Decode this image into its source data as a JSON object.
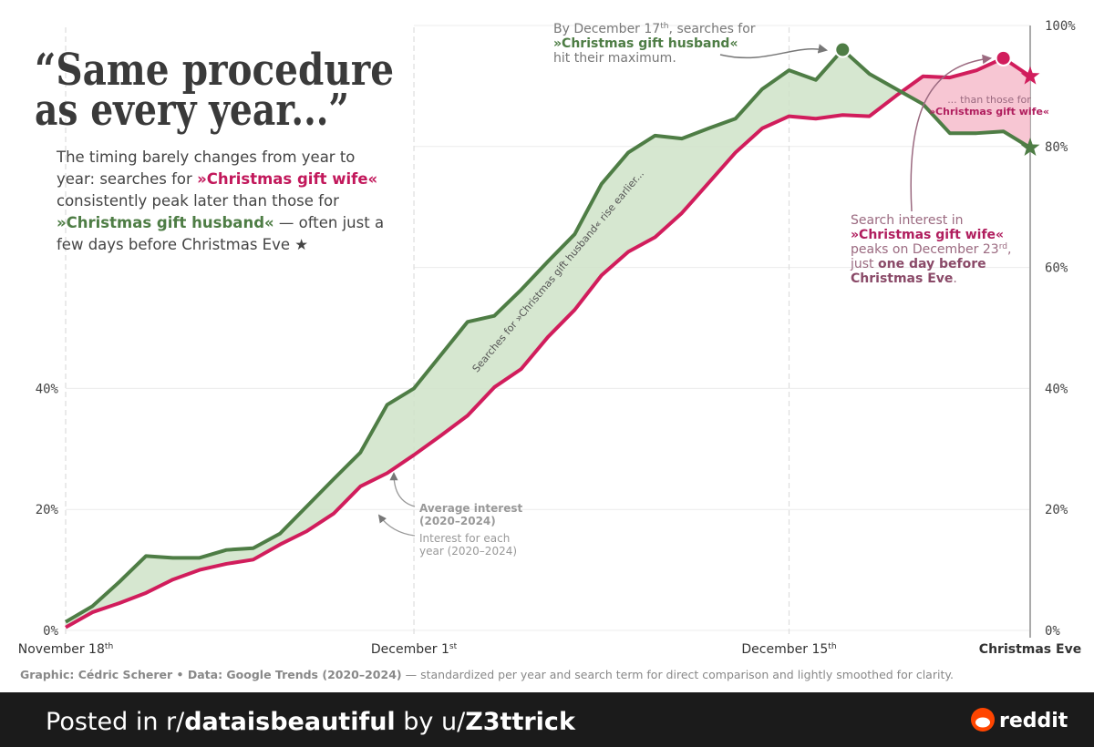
{
  "chart_data": {
    "type": "line",
    "title": [
      "“Same procedure",
      "as every year...”"
    ],
    "description": [
      [
        {
          "text": "The timing barely changes from year to"
        }
      ],
      [
        {
          "text": "year: searches for "
        },
        {
          "text": "»Christmas gift wife«",
          "bold": true,
          "color": "#c2185b"
        }
      ],
      [
        {
          "text": "consistently peak later than those for"
        }
      ],
      [
        {
          "text": "»Christmas gift husband«",
          "bold": true,
          "color": "#4e7d45"
        },
        {
          "text": " — often just a"
        }
      ],
      [
        {
          "text": "few days before Christmas Eve ★"
        }
      ]
    ],
    "x": [
      0,
      1,
      2,
      3,
      4,
      5,
      6,
      7,
      8,
      9,
      10,
      11,
      12,
      13,
      14,
      15,
      16,
      17,
      18,
      19,
      20,
      21,
      22,
      23,
      24,
      25,
      26,
      27,
      28,
      29,
      30,
      31,
      32,
      33,
      34,
      35,
      36
    ],
    "xlim": [
      0,
      36
    ],
    "xticks": [
      {
        "value": 0,
        "label": "November 18",
        "sup": "th"
      },
      {
        "value": 13,
        "label": "December 1",
        "sup": "st"
      },
      {
        "value": 27,
        "label": "December 15",
        "sup": "th"
      },
      {
        "value": 36,
        "label": "Christmas Eve",
        "bold": true
      }
    ],
    "ylim": [
      0,
      100
    ],
    "yticks": [
      {
        "value": 0,
        "label": "0%"
      },
      {
        "value": 20,
        "label": "20%"
      },
      {
        "value": 40,
        "label": "40%"
      },
      {
        "value": 60,
        "label": "60%"
      },
      {
        "value": 80,
        "label": "80%"
      },
      {
        "value": 100,
        "label": "100%"
      }
    ],
    "yticks_left": [
      {
        "value": 0,
        "label": "0%"
      },
      {
        "value": 20,
        "label": "20%"
      },
      {
        "value": 40,
        "label": "40%"
      }
    ],
    "grid": true,
    "series": [
      {
        "name": "»Christmas gift husband«",
        "color": "#4e7d45",
        "fill": "#cfe3c8",
        "values": [
          1.4,
          4,
          8,
          12.3,
          12,
          12,
          13.3,
          13.6,
          16,
          20.5,
          25,
          29.4,
          37.3,
          40,
          45.5,
          51,
          52,
          56.3,
          61,
          65.5,
          73.8,
          79,
          81.8,
          81.3,
          83,
          84.6,
          89.5,
          92.6,
          91,
          96,
          92,
          89.5,
          87,
          82.2,
          82.2,
          82.5,
          79.8
        ],
        "peak_index": 29
      },
      {
        "name": "»Christmas gift wife«",
        "color": "#d11d5c",
        "fill": "#f6bccb",
        "values": [
          0.5,
          3,
          4.5,
          6.2,
          8.4,
          10,
          11,
          11.7,
          14.2,
          16.4,
          19.3,
          23.8,
          26,
          29,
          32.2,
          35.5,
          40.2,
          43.2,
          48.5,
          53,
          58.7,
          62.6,
          65,
          69,
          74,
          79,
          83,
          85,
          84.6,
          85.2,
          85,
          88.4,
          91.6,
          91.4,
          92.6,
          94.6,
          91.6
        ],
        "peak_index": 35
      }
    ],
    "band_label": "Searches for »Christmas gift husband« rise earlier...",
    "annotations": [
      {
        "lines": [
          [
            {
              "text": "By December 17"
            },
            {
              "text": "th",
              "sup": true
            },
            {
              "text": ", searches for"
            }
          ],
          [
            {
              "text": "»Christmas gift husband«",
              "bold": true,
              "color": "#4e7d45"
            }
          ],
          [
            {
              "text": "hit their maximum."
            }
          ]
        ]
      },
      {
        "lines": [
          [
            {
              "text": "... than those for"
            }
          ],
          [
            {
              "text": "»Christmas gift wife«",
              "bold": true,
              "color": "#b01e5e"
            }
          ]
        ]
      },
      {
        "lines": [
          [
            {
              "text": "Search interest in"
            }
          ],
          [
            {
              "text": "»Christmas gift wife«",
              "bold": true,
              "color": "#b01e5e"
            }
          ],
          [
            {
              "text": "peaks on December 23"
            },
            {
              "text": "rd",
              "sup": true
            },
            {
              "text": ","
            }
          ],
          [
            {
              "text": "just "
            },
            {
              "text": "one day before",
              "bold": true,
              "color": "#8a4a68"
            }
          ],
          [
            {
              "text": "Christmas Eve",
              "bold": true,
              "color": "#8a4a68"
            },
            {
              "text": "."
            }
          ]
        ]
      },
      {
        "lines": [
          [
            {
              "text": "Average interest"
            }
          ],
          [
            {
              "text": "(2020–2024)"
            }
          ]
        ]
      },
      {
        "lines": [
          [
            {
              "text": "Interest for each"
            }
          ],
          [
            {
              "text": "year (2020–2024)"
            }
          ]
        ]
      }
    ],
    "caption": [
      {
        "text": "Graphic: Cédric Scherer  •  Data: Google Trends (2020–2024)",
        "bold": true
      },
      {
        "text": " — standardized per year and search term for direct comparison and lightly smoothed for clarity."
      }
    ]
  },
  "footer": {
    "posted": [
      {
        "text": "Posted in r/"
      },
      {
        "text": "dataisbeautiful",
        "bold": true
      },
      {
        "text": " by u/"
      },
      {
        "text": "Z3ttrick",
        "bold": true
      }
    ],
    "brand": "reddit"
  }
}
